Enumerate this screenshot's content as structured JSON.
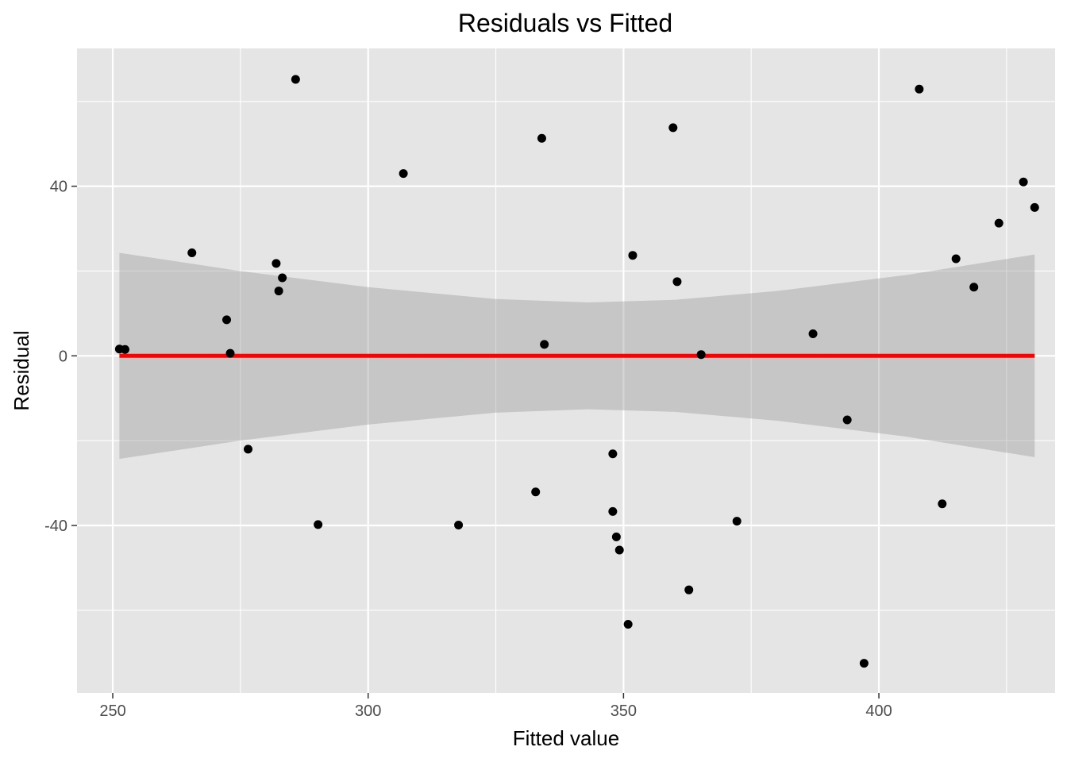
{
  "chart_data": {
    "type": "scatter",
    "title": "Residuals vs Fitted",
    "xlabel": "Fitted value",
    "ylabel": "Residual",
    "xlim": [
      243,
      434.5
    ],
    "ylim": [
      -79.5,
      72.5
    ],
    "x_ticks": [
      250,
      300,
      350,
      400
    ],
    "x_minor": [
      275,
      325,
      375,
      425
    ],
    "y_ticks": [
      -40,
      0,
      40
    ],
    "y_minor": [
      -60,
      -20,
      20,
      60
    ],
    "grid": true,
    "legend": "none",
    "colors": {
      "panel": "#e5e5e5",
      "grid": "#ffffff",
      "points": "#000000",
      "fit_line": "#ff0000",
      "band": "#c0c0c0"
    },
    "points": [
      {
        "x": 251.3,
        "y": 1.6
      },
      {
        "x": 252.4,
        "y": 1.5
      },
      {
        "x": 265.5,
        "y": 24.3
      },
      {
        "x": 272.3,
        "y": 8.5
      },
      {
        "x": 273.0,
        "y": 0.6
      },
      {
        "x": 276.5,
        "y": -22.0
      },
      {
        "x": 282.0,
        "y": 21.8
      },
      {
        "x": 282.5,
        "y": 15.3
      },
      {
        "x": 283.2,
        "y": 18.4
      },
      {
        "x": 285.8,
        "y": 65.2
      },
      {
        "x": 290.2,
        "y": -39.8
      },
      {
        "x": 306.9,
        "y": 43.0
      },
      {
        "x": 317.7,
        "y": -39.9
      },
      {
        "x": 332.8,
        "y": -32.1
      },
      {
        "x": 334.0,
        "y": 51.3
      },
      {
        "x": 334.5,
        "y": 2.7
      },
      {
        "x": 347.9,
        "y": -23.1
      },
      {
        "x": 347.9,
        "y": -36.7
      },
      {
        "x": 348.6,
        "y": -42.7
      },
      {
        "x": 349.2,
        "y": -45.8
      },
      {
        "x": 350.9,
        "y": -63.3
      },
      {
        "x": 351.8,
        "y": 23.7
      },
      {
        "x": 359.7,
        "y": 53.8
      },
      {
        "x": 360.5,
        "y": 17.5
      },
      {
        "x": 362.8,
        "y": -55.2
      },
      {
        "x": 365.2,
        "y": 0.3
      },
      {
        "x": 372.2,
        "y": -39.0
      },
      {
        "x": 387.1,
        "y": 5.2
      },
      {
        "x": 393.8,
        "y": -15.1
      },
      {
        "x": 397.1,
        "y": -72.5
      },
      {
        "x": 407.9,
        "y": 62.9
      },
      {
        "x": 412.4,
        "y": -34.9
      },
      {
        "x": 415.1,
        "y": 22.9
      },
      {
        "x": 418.6,
        "y": 16.2
      },
      {
        "x": 423.5,
        "y": 31.3
      },
      {
        "x": 428.3,
        "y": 41.0
      },
      {
        "x": 430.5,
        "y": 35.0
      }
    ],
    "fit_line": {
      "x": [
        251.3,
        430.5
      ],
      "y": [
        0,
        0
      ]
    },
    "band": {
      "x": [
        251.3,
        275,
        300,
        325,
        343,
        360,
        380,
        405,
        430.5
      ],
      "upper": [
        24.3,
        20.0,
        16.2,
        13.4,
        12.6,
        13.2,
        15.3,
        19.0,
        23.9
      ],
      "lower": [
        -24.3,
        -20.0,
        -16.2,
        -13.4,
        -12.6,
        -13.2,
        -15.3,
        -19.0,
        -23.9
      ]
    }
  }
}
